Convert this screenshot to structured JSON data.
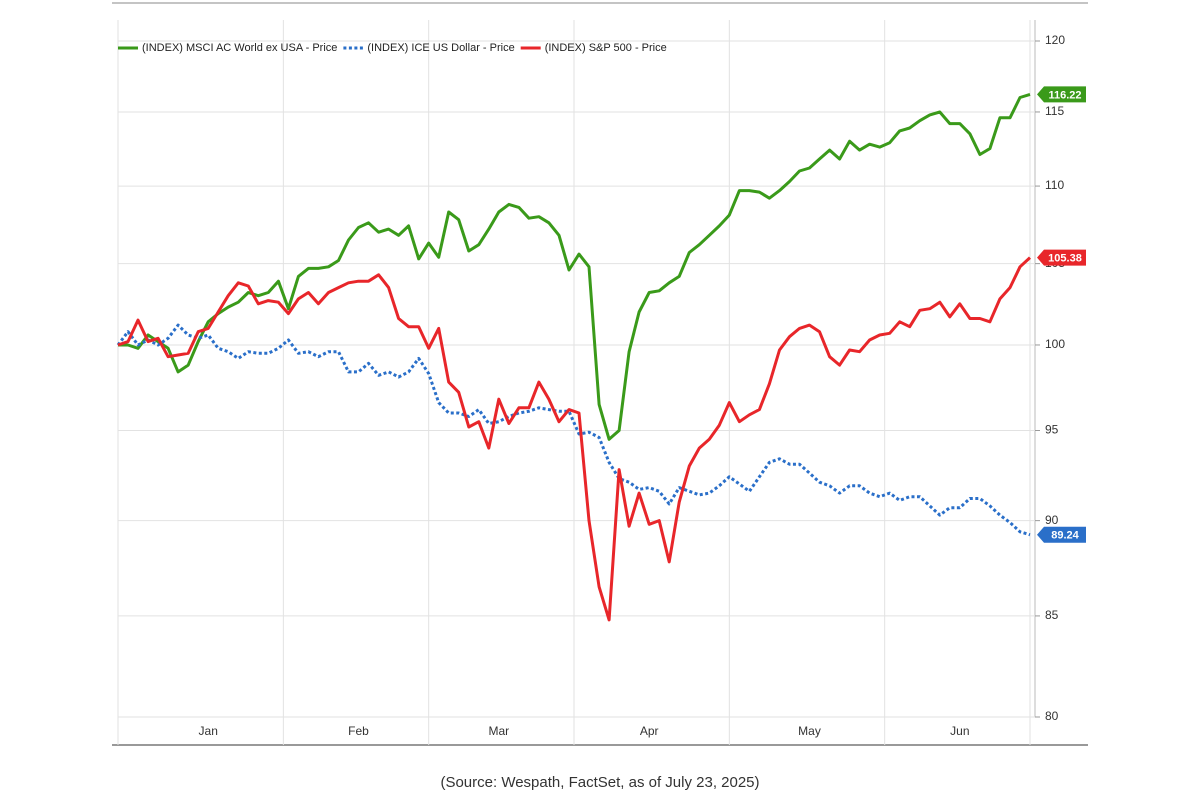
{
  "chart_data": {
    "type": "line",
    "source": "(Source: Wespath, FactSet, as of July 23, 2025)",
    "log_scale": true,
    "grid": true,
    "legend": "top-left",
    "categories": [
      null,
      null,
      null,
      null,
      null,
      null,
      null,
      null,
      null,
      "Jan",
      null,
      null,
      null,
      null,
      null,
      null,
      null,
      null,
      null,
      null,
      null,
      null,
      null,
      null,
      "Feb",
      null,
      null,
      null,
      null,
      null,
      null,
      null,
      null,
      null,
      null,
      null,
      null,
      null,
      "Mar",
      null,
      null,
      null,
      null,
      null,
      null,
      null,
      null,
      null,
      null,
      null,
      null,
      null,
      null,
      "Apr",
      null,
      null,
      null,
      null,
      null,
      null,
      null,
      null,
      null,
      null,
      null,
      null,
      null,
      null,
      null,
      "May",
      null,
      null,
      null,
      null,
      null,
      null,
      null,
      null,
      null,
      null,
      null,
      null,
      null,
      null,
      "Jun",
      null,
      null,
      null,
      null,
      null,
      null,
      null
    ],
    "ylim": [
      80,
      120
    ],
    "yticks": [
      80,
      85,
      90,
      95,
      100,
      105,
      110,
      115,
      120
    ],
    "series": [
      {
        "name": "(INDEX) MSCI AC World ex USA - Price",
        "color": "#3a9a1a",
        "style": "solid",
        "values": [
          100,
          100,
          99.8,
          100.6,
          100.2,
          99.8,
          98.4,
          98.8,
          100.2,
          101.4,
          101.9,
          102.3,
          102.6,
          103.2,
          103,
          103.2,
          103.9,
          102.2,
          104.2,
          104.7,
          104.7,
          104.8,
          105.2,
          106.5,
          107.3,
          107.6,
          107,
          107.2,
          106.8,
          107.4,
          105.3,
          106.3,
          105.4,
          108.3,
          107.8,
          105.8,
          106.2,
          107.2,
          108.3,
          108.8,
          108.6,
          107.9,
          108,
          107.6,
          106.8,
          104.6,
          105.6,
          104.8,
          96.5,
          94.5,
          95,
          99.6,
          102,
          103.2,
          103.3,
          103.8,
          104.2,
          105.7,
          106.2,
          106.8,
          107.4,
          108.1,
          109.7,
          109.7,
          109.6,
          109.2,
          109.7,
          110.3,
          111,
          111.2,
          111.8,
          112.4,
          111.8,
          113,
          112.4,
          112.8,
          112.6,
          112.9,
          113.7,
          113.9,
          114.4,
          114.8,
          115,
          114.2,
          114.2,
          113.5,
          112.1,
          112.5,
          114.6,
          114.6,
          116,
          116.22
        ]
      },
      {
        "name": "(INDEX) ICE US Dollar - Price",
        "color": "#2a6fc9",
        "style": "dotted",
        "values": [
          100,
          100.8,
          100,
          100.3,
          100,
          100.4,
          101.2,
          100.6,
          100.4,
          100.6,
          99.8,
          99.6,
          99.2,
          99.6,
          99.5,
          99.5,
          99.8,
          100.3,
          99.5,
          99.6,
          99.3,
          99.6,
          99.6,
          98.4,
          98.4,
          98.9,
          98.2,
          98.4,
          98.1,
          98.4,
          99.2,
          98.3,
          96.6,
          96,
          96,
          95.8,
          96.2,
          95.4,
          95.5,
          95.8,
          96,
          96.1,
          96.3,
          96.2,
          96.1,
          96.1,
          94.8,
          94.9,
          94.6,
          93.2,
          92.3,
          92.1,
          91.7,
          91.8,
          91.6,
          90.9,
          91.8,
          91.6,
          91.4,
          91.5,
          91.9,
          92.4,
          92,
          91.6,
          92.4,
          93.2,
          93.4,
          93.1,
          93.1,
          92.6,
          92.1,
          91.9,
          91.5,
          91.9,
          91.9,
          91.5,
          91.3,
          91.5,
          91.1,
          91.3,
          91.3,
          90.8,
          90.3,
          90.7,
          90.7,
          91.2,
          91.2,
          90.8,
          90.3,
          89.9,
          89.4,
          89.24
        ]
      },
      {
        "name": "(INDEX) S&P 500 - Price",
        "color": "#e8262a",
        "style": "solid",
        "values": [
          100,
          100.2,
          101.5,
          100.2,
          100.4,
          99.3,
          99.4,
          99.5,
          100.8,
          101,
          102,
          103,
          103.8,
          103.6,
          102.5,
          102.7,
          102.6,
          101.9,
          102.8,
          103.2,
          102.5,
          103.2,
          103.5,
          103.8,
          103.9,
          103.9,
          104.3,
          103.5,
          101.6,
          101.1,
          101.1,
          99.8,
          101,
          97.8,
          97.2,
          95.2,
          95.5,
          94,
          96.8,
          95.4,
          96.3,
          96.3,
          97.8,
          96.8,
          95.5,
          96.2,
          96,
          90,
          86.5,
          84.8,
          92.8,
          89.7,
          91.5,
          89.8,
          90,
          87.8,
          91,
          93,
          94,
          94.5,
          95.3,
          96.6,
          95.5,
          95.9,
          96.2,
          97.7,
          99.7,
          100.5,
          101,
          101.2,
          100.8,
          99.3,
          98.8,
          99.7,
          99.6,
          100.3,
          100.6,
          100.7,
          101.4,
          101.1,
          102.1,
          102.2,
          102.6,
          101.7,
          102.5,
          101.6,
          101.6,
          101.4,
          102.8,
          103.5,
          104.8,
          105.38
        ]
      }
    ]
  }
}
